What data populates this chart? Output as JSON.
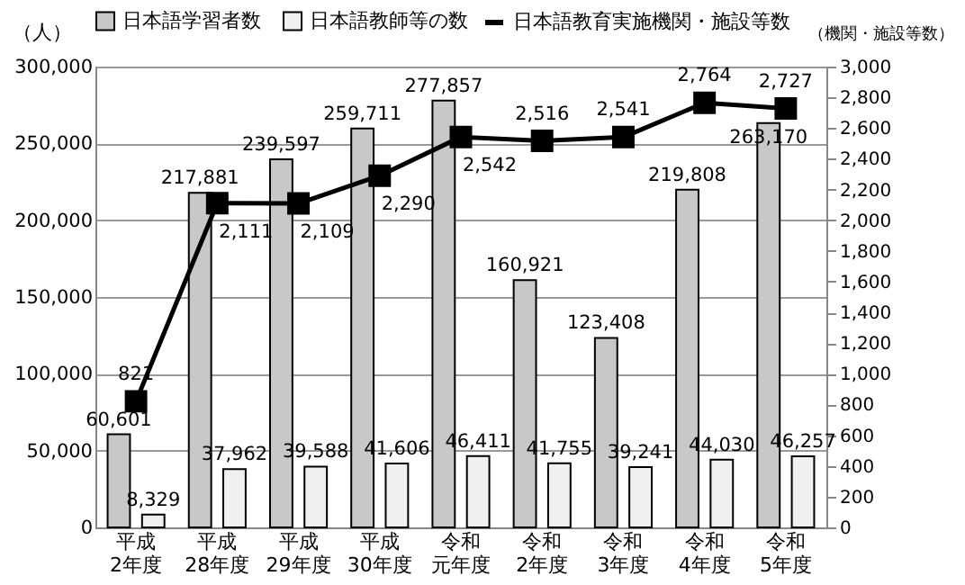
{
  "chart_data": {
    "type": "bar",
    "categories": [
      "平成2年度",
      "平成28年度",
      "平成29年度",
      "平成30年度",
      "令和元年度",
      "令和2年度",
      "令和3年度",
      "令和4年度",
      "令和5年度"
    ],
    "series": [
      {
        "name": "日本語学習者数",
        "color": "#c8c8c8",
        "values": [
          60601,
          217881,
          239597,
          259711,
          277857,
          160921,
          123408,
          219808,
          263170
        ],
        "value_labels": [
          "60,601",
          "217,881",
          "239,597",
          "259,711",
          "277,857",
          "160,921",
          "123,408",
          "219,808",
          "263,170"
        ]
      },
      {
        "name": "日本語教師等の数",
        "color": "#f0f0f0",
        "values": [
          8329,
          37962,
          39588,
          41606,
          46411,
          41755,
          39241,
          44030,
          46257
        ],
        "value_labels": [
          "8,329",
          "37,962",
          "39,588",
          "41,606",
          "46,411",
          "41,755",
          "39,241",
          "44,030",
          "46,257"
        ]
      },
      {
        "name": "日本語教育実施機関・施設等数",
        "color": "#000000",
        "type": "line",
        "axis": "y2",
        "marker": "square",
        "values": [
          821,
          2111,
          2109,
          2290,
          2542,
          2516,
          2541,
          2764,
          2727
        ],
        "value_labels": [
          "821",
          "2,111",
          "2,109",
          "2,290",
          "2,542",
          "2,516",
          "2,541",
          "2,764",
          "2,727"
        ]
      }
    ],
    "ylabel": "（人）",
    "y2label": "（機関・施設等数）",
    "ylim": [
      0,
      300000
    ],
    "yticks": [
      {
        "value": 0,
        "label": "0"
      },
      {
        "value": 50000,
        "label": "50,000"
      },
      {
        "value": 100000,
        "label": "100,000"
      },
      {
        "value": 150000,
        "label": "150,000"
      },
      {
        "value": 200000,
        "label": "200,000"
      },
      {
        "value": 250000,
        "label": "250,000"
      },
      {
        "value": 300000,
        "label": "300,000"
      }
    ],
    "y2lim": [
      0,
      3000
    ],
    "y2ticks": [
      {
        "value": 0,
        "label": "0"
      },
      {
        "value": 200,
        "label": "200"
      },
      {
        "value": 400,
        "label": "400"
      },
      {
        "value": 600,
        "label": "600"
      },
      {
        "value": 800,
        "label": "800"
      },
      {
        "value": 1000,
        "label": "1,000"
      },
      {
        "value": 1200,
        "label": "1,200"
      },
      {
        "value": 1400,
        "label": "1,400"
      },
      {
        "value": 1600,
        "label": "1,600"
      },
      {
        "value": 1800,
        "label": "1,800"
      },
      {
        "value": 2000,
        "label": "2,000"
      },
      {
        "value": 2200,
        "label": "2,200"
      },
      {
        "value": 2400,
        "label": "2,400"
      },
      {
        "value": 2600,
        "label": "2,600"
      },
      {
        "value": 2800,
        "label": "2,800"
      },
      {
        "value": 3000,
        "label": "3,000"
      }
    ],
    "grid": "y",
    "legend": "top"
  }
}
